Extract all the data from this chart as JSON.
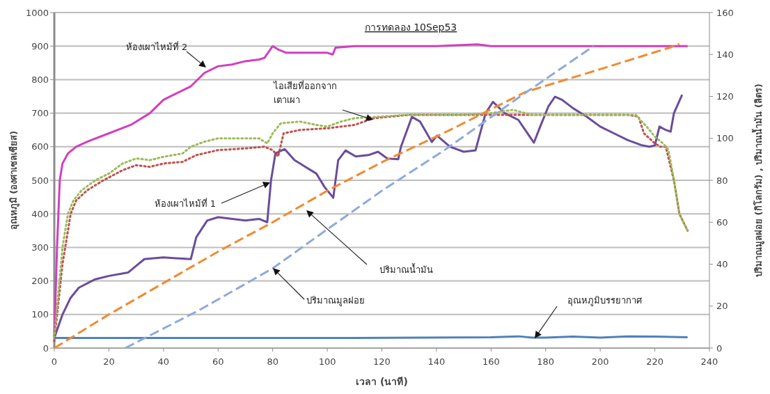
{
  "chart_data": {
    "type": "line",
    "title": "การทดลอง 10Sep53",
    "xlabel": "เวลา (นาที)",
    "ylabel": "อุณหภูมิ (องศาเซลเซียส)",
    "y2label": "ปริมาณมูลฝอย (กิโลกรัม) , ปริมาณน้ำมัน (ลิตร)",
    "xlim": [
      0,
      240
    ],
    "xticks": [
      0,
      20,
      40,
      60,
      80,
      100,
      120,
      140,
      160,
      180,
      200,
      220,
      240
    ],
    "ylim": [
      0,
      1000
    ],
    "yticks": [
      0,
      100,
      200,
      300,
      400,
      500,
      600,
      700,
      800,
      900,
      1000
    ],
    "y2lim": [
      0,
      160
    ],
    "y2ticks": [
      0,
      20,
      40,
      60,
      80,
      100,
      120,
      140,
      160
    ],
    "grid": "y",
    "series": [
      {
        "color": "#d23fbe",
        "line_style": "solid",
        "x": [
          0,
          1,
          2,
          3,
          5,
          8,
          12,
          20,
          28,
          35,
          40,
          45,
          50,
          55,
          60,
          65,
          70,
          75,
          77,
          80,
          82,
          85,
          90,
          95,
          100,
          102,
          103,
          110,
          120,
          140,
          155,
          160,
          180,
          200,
          220,
          232
        ],
        "values": [
          30,
          300,
          500,
          550,
          580,
          600,
          615,
          640,
          665,
          700,
          740,
          760,
          780,
          820,
          840,
          845,
          855,
          860,
          865,
          900,
          890,
          880,
          880,
          880,
          880,
          875,
          895,
          900,
          900,
          900,
          905,
          900,
          900,
          900,
          900,
          900
        ]
      },
      {
        "color": "#6a4c9c",
        "line_style": "solid",
        "x": [
          0,
          3,
          6,
          9,
          15,
          20,
          27,
          30,
          33,
          40,
          50,
          52,
          56,
          60,
          70,
          75,
          78,
          79.4,
          81,
          84.4,
          88,
          92,
          96,
          99,
          102.2,
          104,
          106.7,
          110.4,
          115,
          118.6,
          122,
          126,
          127,
          131,
          134,
          138.3,
          140.2,
          145,
          150,
          154.3,
          158,
          160.7,
          165,
          170,
          175.7,
          178,
          181,
          183.4,
          186,
          190,
          195,
          200,
          205,
          210,
          215,
          218,
          220,
          221.7,
          224,
          225.8,
          227,
          230
        ],
        "values": [
          30,
          100,
          150,
          180,
          205,
          215,
          225,
          245,
          265,
          270,
          265,
          330,
          380,
          390,
          380,
          385,
          375,
          500,
          580,
          593,
          560,
          540,
          520,
          480,
          448,
          560,
          589,
          571,
          575,
          585,
          565,
          563,
          600,
          689,
          675,
          614,
          633,
          600,
          585,
          589,
          700,
          734,
          700,
          680,
          612,
          660,
          720,
          749,
          740,
          715,
          690,
          660,
          640,
          620,
          605,
          600,
          604,
          660,
          650,
          645,
          700,
          755
        ]
      },
      {
        "color": "#c0504d",
        "line_style": "dotted",
        "x": [
          0,
          3,
          6,
          8,
          12,
          18,
          25,
          30,
          35,
          40,
          47,
          52,
          60,
          70,
          77,
          80,
          82,
          84,
          90,
          100,
          110,
          117,
          130,
          150,
          170,
          190,
          210,
          214,
          216,
          220,
          222,
          224,
          227,
          229,
          232
        ],
        "values": [
          20,
          250,
          400,
          440,
          470,
          500,
          530,
          545,
          540,
          550,
          555,
          575,
          590,
          595,
          600,
          590,
          571,
          640,
          650,
          655,
          665,
          685,
          695,
          695,
          695,
          695,
          695,
          690,
          640,
          610,
          600,
          600,
          500,
          400,
          350
        ]
      },
      {
        "color": "#9bbb59",
        "line_style": "dotted",
        "x": [
          0,
          3,
          5,
          7,
          10,
          15,
          20,
          25,
          30,
          35,
          40,
          47,
          50,
          55,
          60,
          70,
          75,
          78,
          80,
          83,
          90,
          96,
          100,
          105,
          110,
          120,
          130,
          150,
          160,
          168,
          175,
          190,
          213,
          217,
          220,
          223,
          225,
          227,
          229,
          232
        ],
        "values": [
          30,
          300,
          400,
          440,
          470,
          500,
          520,
          550,
          565,
          560,
          570,
          580,
          600,
          615,
          625,
          625,
          625,
          610,
          640,
          670,
          675,
          665,
          660,
          675,
          685,
          690,
          695,
          695,
          700,
          710,
          695,
          695,
          695,
          660,
          630,
          610,
          590,
          500,
          400,
          350
        ]
      },
      {
        "color": "#4f81bd",
        "line_style": "solid",
        "x": [
          0,
          50,
          100,
          160,
          170,
          175,
          180,
          190,
          200,
          210,
          220,
          232
        ],
        "values": [
          30,
          30,
          30,
          32,
          35,
          31,
          31,
          34,
          31,
          35,
          34,
          32
        ]
      },
      {
        "color": "#f28a30",
        "line_style": "dashed",
        "axis": "y2",
        "x": [
          0,
          20,
          40,
          60,
          80,
          100,
          120.6,
          145,
          172.4,
          200,
          226,
          229
        ],
        "values": [
          0,
          16,
          31,
          46,
          60,
          75,
          89,
          104,
          122,
          133,
          143.5,
          145
        ]
      },
      {
        "color": "#8eaadb",
        "line_style": "dashed",
        "axis": "y2",
        "x": [
          26,
          53,
          80,
          100.4,
          120,
          142.5,
          170.7,
          197.6
        ],
        "values": [
          0,
          18,
          38,
          57,
          75,
          94,
          120,
          144
        ]
      }
    ],
    "annotations": [
      "ห้องเผาไหม้ที่ 2",
      "ไอเสียที่ออกจาก\nเตาเผา",
      "ห้องเผาไหม้ที่ 1",
      "ปริมาณน้ำมัน",
      "ปริมาณมูลฝอย",
      "อุณหภูมิบรรยากาศ"
    ]
  }
}
